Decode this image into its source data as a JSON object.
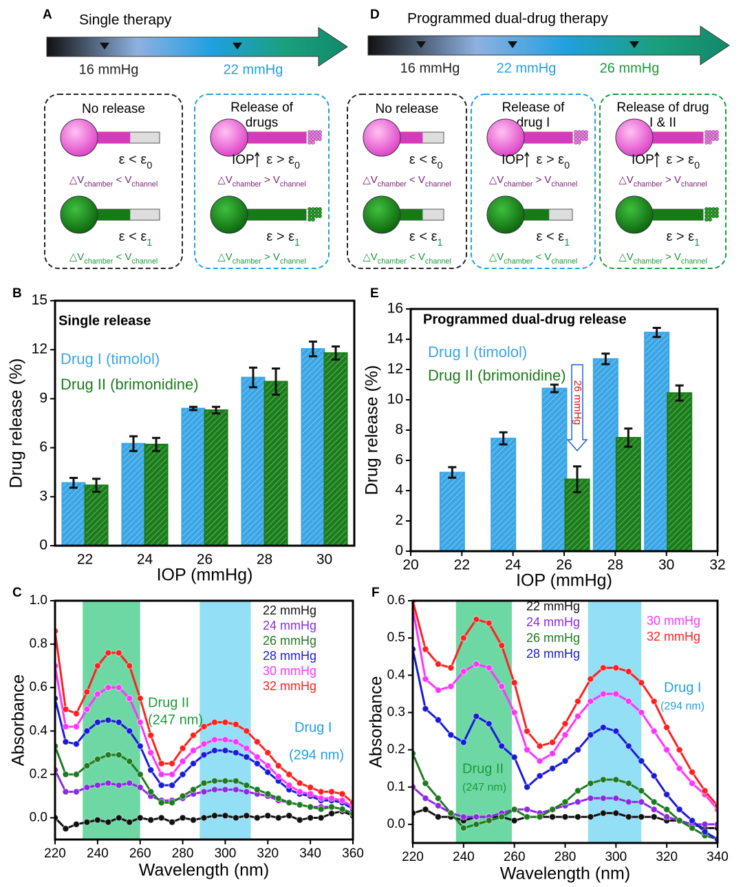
{
  "diagrams": [
    {
      "label": "A",
      "title": "Single therapy",
      "pressures": [
        "16 mmHg",
        "22 mmHg"
      ],
      "iop": "IOP",
      "boxes": [
        {
          "title": [
            "No release"
          ],
          "strain": [
            [
              "ε < ε",
              "0"
            ],
            [
              "ε < ε",
              "1"
            ]
          ],
          "volume": [
            [
              "△V",
              "chamber",
              " < V",
              "channel"
            ],
            [
              "△V",
              "chamber",
              " < V",
              "channel"
            ]
          ]
        },
        {
          "title": [
            "Release of",
            "drugs"
          ],
          "strain": [
            [
              "ε > ε",
              "0"
            ],
            [
              "ε > ε",
              "1"
            ]
          ],
          "volume": [
            [
              "△V",
              "chamber",
              " > V",
              "channel"
            ],
            [
              "△V",
              "chamber",
              " > V",
              "channel"
            ]
          ]
        }
      ]
    },
    {
      "label": "D",
      "title": "Programmed dual-drug therapy",
      "pressures": [
        "16 mmHg",
        "22 mmHg",
        "26 mmHg"
      ],
      "iop": "IOP",
      "boxes": [
        {
          "title": [
            "No release"
          ],
          "strain": [
            [
              "ε < ε",
              "0"
            ],
            [
              "ε < ε",
              "1"
            ]
          ],
          "volume": [
            [
              "△V",
              "chamber",
              " < V",
              "channel"
            ],
            [
              "△V",
              "chamber",
              " < V",
              "channel"
            ]
          ]
        },
        {
          "title": [
            "Release of",
            "drug I"
          ],
          "strain": [
            [
              "ε > ε",
              "0"
            ],
            [
              "ε < ε",
              "1"
            ]
          ],
          "volume": [
            [
              "△V",
              "chamber",
              " > V",
              "channel"
            ],
            [
              "△V",
              "chamber",
              " < V",
              "channel"
            ]
          ]
        },
        {
          "title": [
            "Release of drug",
            "I & II"
          ],
          "strain": [
            [
              "ε > ε",
              "0"
            ],
            [
              "ε > ε",
              "1"
            ]
          ],
          "volume": [
            [
              "△V",
              "chamber",
              " > V",
              "channel"
            ],
            [
              "△V",
              "chamber",
              " > V",
              "channel"
            ]
          ]
        }
      ]
    }
  ],
  "chart_data": [
    {
      "label": "B",
      "type": "bar",
      "title": "Single release",
      "xlabel": "IOP (mmHg)",
      "ylabel": "Drug release (%)",
      "categories": [
        "22",
        "24",
        "26",
        "28",
        "30"
      ],
      "ylim": [
        0,
        15
      ],
      "yticks": [
        0,
        3,
        6,
        9,
        12,
        15
      ],
      "series": [
        {
          "name": "Drug I (timolol)",
          "color": "#3aa6e6",
          "values": [
            3.85,
            6.25,
            8.4,
            10.3,
            12.05
          ],
          "errors": [
            0.3,
            0.45,
            0.1,
            0.6,
            0.45
          ]
        },
        {
          "name": "Drug II (brimonidine)",
          "color": "#1a7d1a",
          "values": [
            3.7,
            6.2,
            8.3,
            10.05,
            11.8
          ],
          "errors": [
            0.4,
            0.4,
            0.2,
            0.8,
            0.4
          ]
        }
      ]
    },
    {
      "label": "C",
      "type": "line",
      "xlabel": "Wavelength (nm)",
      "ylabel": "Absorbance",
      "x": [
        220,
        225,
        230,
        235,
        240,
        245,
        250,
        255,
        260,
        265,
        270,
        275,
        280,
        285,
        290,
        295,
        300,
        305,
        310,
        315,
        320,
        325,
        330,
        335,
        340,
        345,
        350,
        355,
        360
      ],
      "xlim": [
        220,
        360
      ],
      "xticks": [
        220,
        240,
        260,
        280,
        300,
        320,
        340,
        360
      ],
      "ylim": [
        -0.1,
        1.0
      ],
      "yticks": [
        {
          "value": 0,
          "label": "0.0"
        },
        0.2,
        0.4,
        0.6,
        0.8,
        {
          "value": 1,
          "label": "1.0"
        }
      ],
      "bands": [
        [
          233,
          260
        ],
        [
          288,
          312
        ]
      ],
      "band_colors": [
        "#5ed49a",
        "#86dbf5"
      ],
      "annotations": [
        "Drug II",
        "(247 nm)",
        "Drug I",
        "(294 nm)"
      ],
      "annotation_colors": [
        "#1a9a3a",
        "#1a9a3a",
        "#1fa0e0",
        "#1fa0e0"
      ],
      "series": [
        {
          "name": "22 mmHg",
          "color": "#111111",
          "values": [
            0.0,
            -0.05,
            -0.03,
            -0.02,
            -0.01,
            -0.02,
            0.0,
            -0.02,
            0.0,
            -0.01,
            0.0,
            -0.02,
            0.0,
            -0.01,
            0.0,
            0.01,
            0.01,
            0.0,
            0.01,
            0.0,
            0.01,
            0.0,
            0.01,
            -0.01,
            0.0,
            0.0,
            0.02,
            0.03,
            0.01
          ]
        },
        {
          "name": "24 mmHg",
          "color": "#8a2be2",
          "values": [
            0.22,
            0.12,
            0.12,
            0.14,
            0.15,
            0.16,
            0.15,
            0.16,
            0.14,
            0.1,
            0.08,
            0.08,
            0.09,
            0.11,
            0.12,
            0.13,
            0.13,
            0.13,
            0.12,
            0.11,
            0.1,
            0.08,
            0.07,
            0.06,
            0.05,
            0.05,
            0.05,
            0.04,
            0.02
          ]
        },
        {
          "name": "26 mmHg",
          "color": "#1f7a1f",
          "values": [
            0.33,
            0.2,
            0.2,
            0.24,
            0.27,
            0.29,
            0.29,
            0.26,
            0.2,
            0.12,
            0.07,
            0.07,
            0.1,
            0.13,
            0.16,
            0.17,
            0.17,
            0.17,
            0.15,
            0.13,
            0.11,
            0.09,
            0.07,
            0.06,
            0.05,
            0.04,
            0.05,
            0.04,
            0.02
          ]
        },
        {
          "name": "28 mmHg",
          "color": "#1a1adb",
          "values": [
            0.55,
            0.35,
            0.34,
            0.4,
            0.44,
            0.45,
            0.44,
            0.4,
            0.33,
            0.22,
            0.15,
            0.15,
            0.2,
            0.25,
            0.29,
            0.31,
            0.31,
            0.3,
            0.28,
            0.25,
            0.21,
            0.17,
            0.13,
            0.11,
            0.1,
            0.08,
            0.08,
            0.07,
            0.04
          ]
        },
        {
          "name": "30 mmHg",
          "color": "#ff33ff",
          "values": [
            0.7,
            0.42,
            0.42,
            0.5,
            0.57,
            0.6,
            0.6,
            0.55,
            0.44,
            0.3,
            0.2,
            0.2,
            0.26,
            0.31,
            0.34,
            0.36,
            0.36,
            0.35,
            0.32,
            0.28,
            0.24,
            0.19,
            0.15,
            0.12,
            0.11,
            0.09,
            0.09,
            0.08,
            0.05
          ]
        },
        {
          "name": "32 mmHg",
          "color": "#ff2020",
          "values": [
            0.86,
            0.5,
            0.48,
            0.58,
            0.7,
            0.76,
            0.76,
            0.7,
            0.55,
            0.38,
            0.25,
            0.25,
            0.32,
            0.38,
            0.42,
            0.44,
            0.44,
            0.43,
            0.4,
            0.35,
            0.3,
            0.24,
            0.2,
            0.16,
            0.14,
            0.12,
            0.12,
            0.11,
            0.07
          ]
        }
      ]
    },
    {
      "label": "E",
      "type": "bar",
      "title": "Programmed dual-drug release",
      "xlabel": "IOP (mmHg)",
      "ylabel": "Drug release (%)",
      "x": [
        22,
        24,
        26,
        28,
        30
      ],
      "xlim": [
        20,
        32
      ],
      "xticks": [
        20,
        22,
        24,
        26,
        28,
        30,
        32
      ],
      "ylim": [
        0,
        16
      ],
      "yticks": [
        0,
        2,
        4,
        6,
        8,
        10,
        12,
        14,
        16
      ],
      "annotations": [
        "26 mmHg"
      ],
      "series": [
        {
          "name": "Drug I (timolol)",
          "color": "#3aa6e6",
          "values": [
            5.2,
            7.45,
            10.75,
            12.7,
            14.45
          ],
          "errors": [
            0.35,
            0.4,
            0.25,
            0.35,
            0.3
          ]
        },
        {
          "name": "Drug II (brimonidine)",
          "color": "#1a7d1a",
          "values": [
            null,
            null,
            4.75,
            7.5,
            10.45
          ],
          "errors": [
            null,
            null,
            0.85,
            0.6,
            0.5
          ]
        }
      ]
    },
    {
      "label": "F",
      "type": "line",
      "xlabel": "Wavelength (nm)",
      "ylabel": "Absorbance",
      "x": [
        220,
        225,
        230,
        235,
        240,
        245,
        250,
        255,
        260,
        265,
        270,
        275,
        280,
        285,
        290,
        295,
        300,
        305,
        310,
        315,
        320,
        325,
        330,
        335,
        340
      ],
      "xlim": [
        220,
        340
      ],
      "xticks": [
        220,
        240,
        260,
        280,
        300,
        320,
        340
      ],
      "ylim": [
        -0.05,
        0.6
      ],
      "yticks": [
        {
          "value": 0,
          "label": "0.0"
        },
        0.1,
        0.2,
        0.3,
        0.4,
        0.5,
        0.6
      ],
      "bands": [
        [
          237,
          259
        ],
        [
          289,
          310
        ]
      ],
      "band_colors": [
        "#5ed49a",
        "#86dbf5"
      ],
      "annotations": [
        "Drug II",
        "(247 nm)",
        "Drug I",
        "(294 nm)"
      ],
      "annotation_colors": [
        "#1a9a3a",
        "#1a9a3a",
        "#1fa0e0",
        "#1fa0e0"
      ],
      "series": [
        {
          "name": "22 mmHg",
          "color": "#111111",
          "values": [
            0.03,
            0.04,
            0.02,
            0.02,
            0.01,
            0.02,
            0.02,
            0.02,
            0.01,
            0.02,
            0.02,
            0.02,
            0.02,
            0.02,
            0.02,
            0.03,
            0.03,
            0.02,
            0.02,
            0.02,
            0.01,
            0.01,
            0.0,
            -0.01,
            -0.01
          ]
        },
        {
          "name": "24 mmHg",
          "color": "#8a2be2",
          "values": [
            0.1,
            0.07,
            0.05,
            0.03,
            0.02,
            0.02,
            0.02,
            0.03,
            0.04,
            0.04,
            0.03,
            0.04,
            0.05,
            0.06,
            0.07,
            0.07,
            0.07,
            0.06,
            0.06,
            0.04,
            0.02,
            0.01,
            0.0,
            0.0,
            0.0
          ]
        },
        {
          "name": "26 mmHg",
          "color": "#1f7a1f",
          "values": [
            0.19,
            0.11,
            0.07,
            0.03,
            -0.01,
            0.0,
            0.01,
            0.02,
            0.04,
            0.02,
            0.02,
            0.04,
            0.06,
            0.09,
            0.11,
            0.12,
            0.12,
            0.11,
            0.09,
            0.06,
            0.04,
            0.01,
            -0.01,
            -0.03,
            -0.04
          ]
        },
        {
          "name": "28 mmHg",
          "color": "#1a1adb",
          "values": [
            0.47,
            0.31,
            0.28,
            0.24,
            0.22,
            0.29,
            0.27,
            0.21,
            0.18,
            0.1,
            0.13,
            0.15,
            0.17,
            0.2,
            0.24,
            0.26,
            0.25,
            0.21,
            0.17,
            0.13,
            0.08,
            0.04,
            0.01,
            -0.02,
            -0.04
          ]
        },
        {
          "name": "30 mmHg",
          "color": "#ff33ff",
          "values": [
            0.58,
            0.39,
            0.36,
            0.37,
            0.41,
            0.43,
            0.42,
            0.37,
            0.3,
            0.2,
            0.17,
            0.19,
            0.24,
            0.29,
            0.33,
            0.35,
            0.35,
            0.33,
            0.3,
            0.25,
            0.2,
            0.15,
            0.11,
            0.08,
            0.04
          ]
        },
        {
          "name": "32 mmHg",
          "color": "#ff2020",
          "values": [
            0.6,
            0.47,
            0.43,
            0.42,
            0.5,
            0.55,
            0.54,
            0.48,
            0.38,
            0.25,
            0.21,
            0.22,
            0.27,
            0.33,
            0.39,
            0.42,
            0.42,
            0.41,
            0.38,
            0.33,
            0.26,
            0.2,
            0.14,
            0.09,
            0.05
          ]
        }
      ]
    }
  ]
}
